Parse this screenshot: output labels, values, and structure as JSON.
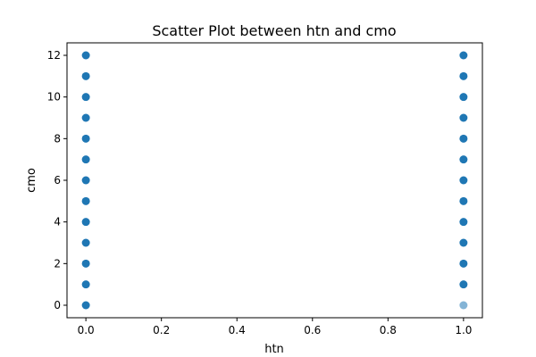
{
  "chart_data": {
    "type": "scatter",
    "title": "Scatter Plot between htn and cmo",
    "xlabel": "htn",
    "ylabel": "cmo",
    "xlim": [
      -0.05,
      1.05
    ],
    "ylim": [
      -0.6,
      12.6
    ],
    "xticks": [
      0.0,
      0.2,
      0.4,
      0.6,
      0.8,
      1.0
    ],
    "xtick_labels": [
      "0.0",
      "0.2",
      "0.4",
      "0.6",
      "0.8",
      "1.0"
    ],
    "yticks": [
      0,
      2,
      4,
      6,
      8,
      10,
      12
    ],
    "ytick_labels": [
      "0",
      "2",
      "4",
      "6",
      "8",
      "10",
      "12"
    ],
    "grid": false,
    "marker_color": "#1f77b4",
    "series": [
      {
        "points": [
          {
            "x": 0,
            "y": 0
          },
          {
            "x": 0,
            "y": 1
          },
          {
            "x": 0,
            "y": 2
          },
          {
            "x": 0,
            "y": 3
          },
          {
            "x": 0,
            "y": 4
          },
          {
            "x": 0,
            "y": 5
          },
          {
            "x": 0,
            "y": 6
          },
          {
            "x": 0,
            "y": 7
          },
          {
            "x": 0,
            "y": 8
          },
          {
            "x": 0,
            "y": 9
          },
          {
            "x": 0,
            "y": 10
          },
          {
            "x": 0,
            "y": 11
          },
          {
            "x": 0,
            "y": 12
          },
          {
            "x": 1,
            "y": 0
          },
          {
            "x": 1,
            "y": 1
          },
          {
            "x": 1,
            "y": 2
          },
          {
            "x": 1,
            "y": 3
          },
          {
            "x": 1,
            "y": 4
          },
          {
            "x": 1,
            "y": 5
          },
          {
            "x": 1,
            "y": 6
          },
          {
            "x": 1,
            "y": 7
          },
          {
            "x": 1,
            "y": 8
          },
          {
            "x": 1,
            "y": 9
          },
          {
            "x": 1,
            "y": 10
          },
          {
            "x": 1,
            "y": 11
          },
          {
            "x": 1,
            "y": 12
          }
        ],
        "light_points": [
          {
            "x": 1,
            "y": 0
          }
        ]
      }
    ]
  }
}
